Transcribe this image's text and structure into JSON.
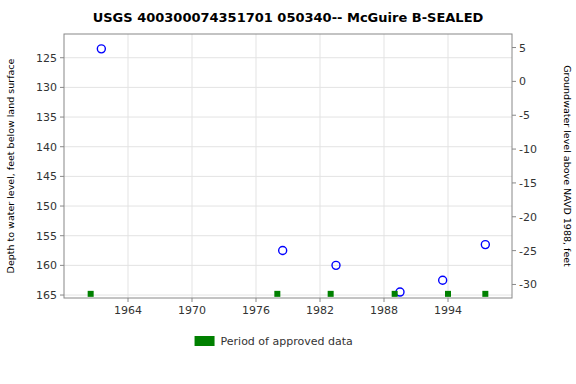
{
  "chart_data": {
    "type": "scatter",
    "title": "USGS 400300074351701 050340-- McGuire B-SEALED",
    "y_label": "Depth to water level, feet below land surface",
    "y2_label": "Groundwater level above NAVD 1988, feet",
    "xlim": [
      1958,
      2000
    ],
    "xticks": [
      1964,
      1970,
      1976,
      1982,
      1988,
      1994
    ],
    "ylim": [
      165.5,
      121.0
    ],
    "yticks": [
      125,
      130,
      135,
      140,
      145,
      150,
      155,
      160,
      165
    ],
    "y2lim": [
      -32.0,
      7.0
    ],
    "y2ticks": [
      5,
      0,
      -5,
      -10,
      -15,
      -20,
      -25,
      -30
    ],
    "grid": true,
    "legend": "bottom",
    "series": [
      {
        "x": [
          1961.5,
          1978.5,
          1983.5,
          1989.5,
          1993.5,
          1997.5
        ],
        "values": [
          123.5,
          157.5,
          160.0,
          164.5,
          162.5,
          156.5
        ],
        "color": "#0000ff",
        "marker": "circle"
      },
      {
        "name": "Period of approved data",
        "x": [
          1960.5,
          1978.0,
          1983.0,
          1989.0,
          1994.0,
          1997.5
        ],
        "values": [
          164.8,
          164.8,
          164.8,
          164.8,
          164.8,
          164.8
        ],
        "color": "#008000",
        "marker": "square"
      }
    ]
  }
}
